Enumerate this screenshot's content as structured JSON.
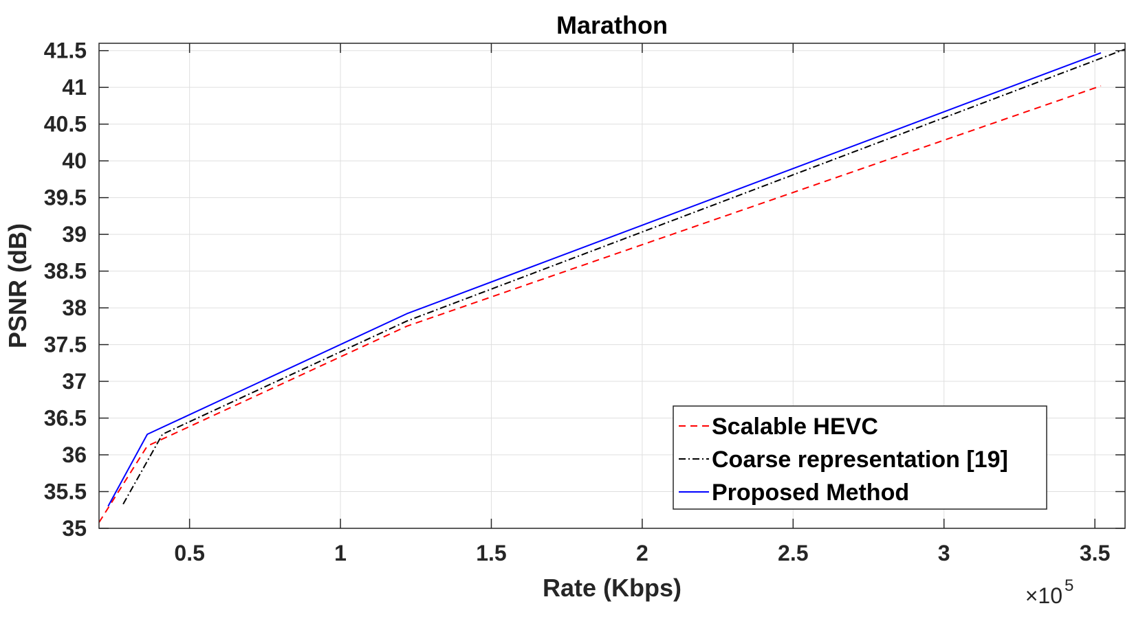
{
  "chart_data": {
    "type": "line",
    "title": "Marathon",
    "xlabel": "Rate (Kbps)",
    "ylabel": "PSNR (dB)",
    "x_scale_exponent_base": "×10",
    "x_scale_exponent_power": "5",
    "xlim": [
      0.2,
      3.6
    ],
    "ylim": [
      35,
      41.6
    ],
    "x_ticks": [
      0.5,
      1,
      1.5,
      2,
      2.5,
      3,
      3.5
    ],
    "x_tick_labels": [
      "0.5",
      "1",
      "1.5",
      "2",
      "2.5",
      "3",
      "3.5"
    ],
    "y_ticks": [
      35,
      35.5,
      36,
      36.5,
      37,
      37.5,
      38,
      38.5,
      39,
      39.5,
      40,
      40.5,
      41,
      41.5
    ],
    "y_tick_labels": [
      "35",
      "35.5",
      "36",
      "36.5",
      "37",
      "37.5",
      "38",
      "38.5",
      "39",
      "39.5",
      "40",
      "40.5",
      "41",
      "41.5"
    ],
    "grid": true,
    "legend_position": "bottom-right",
    "series": [
      {
        "name": "Scalable HEVC",
        "color": "#ff0000",
        "dash": "dashed",
        "x": [
          0.2,
          0.36,
          1.22,
          3.52
        ],
        "y": [
          35.08,
          36.12,
          37.75,
          41.02
        ]
      },
      {
        "name": "Coarse representation [19]",
        "color": "#000000",
        "dash": "dashdot",
        "x": [
          0.28,
          0.41,
          1.22,
          3.6
        ],
        "y": [
          35.33,
          36.28,
          37.82,
          41.52
        ]
      },
      {
        "name": "Proposed Method",
        "color": "#0000ff",
        "dash": "solid",
        "x": [
          0.23,
          0.36,
          1.22,
          3.52
        ],
        "y": [
          35.3,
          36.28,
          37.92,
          41.47
        ]
      }
    ]
  }
}
